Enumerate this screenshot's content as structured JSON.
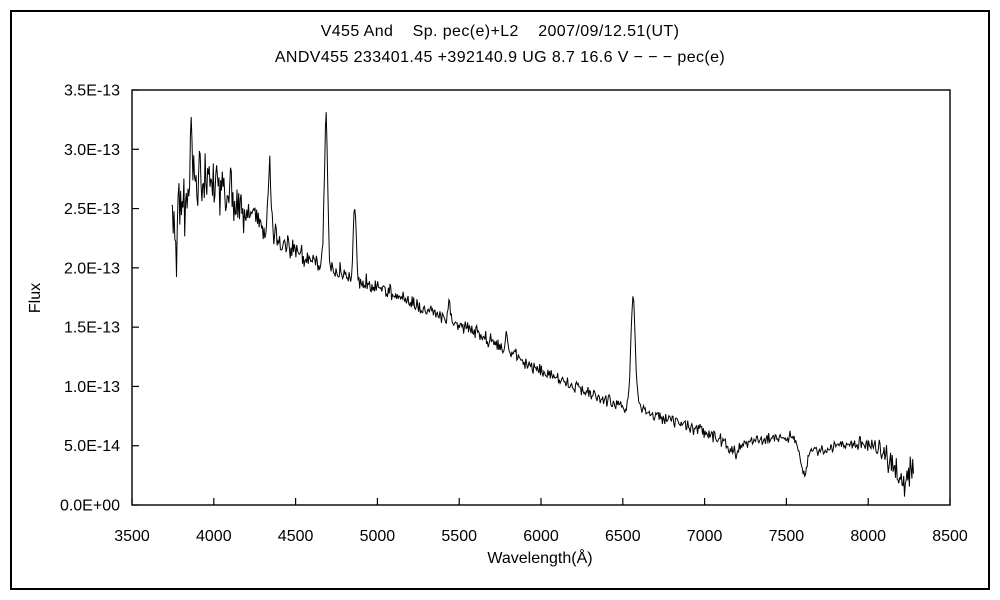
{
  "header": {
    "title_line1": "V455 And    Sp. pec(e)+L2    2007/09/12.51(UT)",
    "title_line2": "ANDV455 233401.45 +392140.9 UG 8.7 16.6 V − − − pec(e)"
  },
  "chart_data": {
    "type": "line",
    "title": "V455 And    Sp. pec(e)+L2    2007/09/12.51(UT)",
    "subtitle": "ANDV455 233401.45 +392140.9 UG 8.7 16.6 V − − − pec(e)",
    "xlabel": "Wavelength(Å)",
    "ylabel": "Flux",
    "xlim": [
      3500,
      8500
    ],
    "ylim": [
      0,
      3.5e-13
    ],
    "x_ticks": [
      3500,
      4000,
      4500,
      5000,
      5500,
      6000,
      6500,
      7000,
      7500,
      8000,
      8500
    ],
    "x_tick_labels": [
      "3500",
      "4000",
      "4500",
      "5000",
      "5500",
      "6000",
      "6500",
      "7000",
      "7500",
      "8000",
      "8500"
    ],
    "y_ticks": [
      0,
      5e-14,
      1e-13,
      1.5e-13,
      2e-13,
      2.5e-13,
      3e-13,
      3.5e-13
    ],
    "y_tick_labels": [
      "0.0E+00",
      "5.0E-14",
      "1.0E-13",
      "1.5E-13",
      "2.0E-13",
      "2.5E-13",
      "3.0E-13",
      "3.5E-13"
    ],
    "grid": false,
    "legend": null,
    "line_color": "#000000",
    "background_color": "#ffffff",
    "measured_peaks": [
      {
        "id": "blue-maximum",
        "wavelength": 3860,
        "peak_flux": 3.35e-13
      },
      {
        "id": "H-gamma",
        "wavelength": 4340,
        "peak_flux": 2.9e-13
      },
      {
        "id": "He-II",
        "wavelength": 4686,
        "peak_flux": 3.25e-13
      },
      {
        "id": "H-beta",
        "wavelength": 4861,
        "peak_flux": 2.5e-13
      },
      {
        "id": "H-alpha",
        "wavelength": 6563,
        "peak_flux": 1.74e-13
      },
      {
        "id": "telluric-O2-band-minimum",
        "wavelength": 7608,
        "peak_flux": 2e-14
      }
    ],
    "series_model": {
      "flux_scale": 1e-13,
      "sampling": {
        "start": 3742,
        "end": 8280,
        "step": 5
      },
      "seed": 20070912,
      "continuum_points": [
        [
          3742,
          2.45
        ],
        [
          3800,
          2.56
        ],
        [
          3860,
          2.7
        ],
        [
          3940,
          2.78
        ],
        [
          4000,
          2.72
        ],
        [
          4100,
          2.58
        ],
        [
          4200,
          2.45
        ],
        [
          4300,
          2.36
        ],
        [
          4400,
          2.24
        ],
        [
          4500,
          2.14
        ],
        [
          4600,
          2.06
        ],
        [
          4700,
          2.0
        ],
        [
          4800,
          1.95
        ],
        [
          4900,
          1.89
        ],
        [
          5000,
          1.84
        ],
        [
          5100,
          1.78
        ],
        [
          5200,
          1.71
        ],
        [
          5300,
          1.65
        ],
        [
          5400,
          1.58
        ],
        [
          5500,
          1.52
        ],
        [
          5600,
          1.46
        ],
        [
          5700,
          1.38
        ],
        [
          5800,
          1.3
        ],
        [
          5900,
          1.21
        ],
        [
          6000,
          1.12
        ],
        [
          6100,
          1.06
        ],
        [
          6200,
          1.0
        ],
        [
          6300,
          0.94
        ],
        [
          6400,
          0.88
        ],
        [
          6500,
          0.84
        ],
        [
          6600,
          0.8
        ],
        [
          6700,
          0.76
        ],
        [
          6800,
          0.71
        ],
        [
          6900,
          0.66
        ],
        [
          7000,
          0.61
        ],
        [
          7100,
          0.55
        ],
        [
          7200,
          0.52
        ],
        [
          7300,
          0.54
        ],
        [
          7400,
          0.55
        ],
        [
          7540,
          0.58
        ],
        [
          7620,
          0.52
        ],
        [
          7700,
          0.45
        ],
        [
          7800,
          0.49
        ],
        [
          7900,
          0.52
        ],
        [
          8000,
          0.5
        ],
        [
          8100,
          0.44
        ],
        [
          8180,
          0.38
        ],
        [
          8280,
          0.34
        ]
      ],
      "emission_lines": [
        {
          "id": "balmer-3860",
          "center": 3860,
          "amplitude": 0.6,
          "sigma": 5
        },
        {
          "id": "balmer-3912",
          "center": 3912,
          "amplitude": 0.4,
          "sigma": 5
        },
        {
          "id": "H-delta-4101",
          "center": 4101,
          "amplitude": 0.15,
          "sigma": 7
        },
        {
          "id": "H-gamma-4340",
          "center": 4340,
          "amplitude": 0.58,
          "sigma": 8
        },
        {
          "id": "He-II-4686",
          "center": 4686,
          "amplitude": 1.25,
          "sigma": 10
        },
        {
          "id": "H-beta-4861",
          "center": 4861,
          "amplitude": 0.6,
          "sigma": 9
        },
        {
          "id": "He-II-5411",
          "center": 5440,
          "amplitude": 0.12,
          "sigma": 7
        },
        {
          "id": "He-I-5876",
          "center": 5790,
          "amplitude": 0.14,
          "sigma": 7
        },
        {
          "id": "H-alpha-6563",
          "center": 6563,
          "amplitude": 0.92,
          "sigma": 14
        }
      ],
      "absorption_bands": [
        {
          "id": "blue-edge-dip",
          "center": 3772,
          "depth": 0.6,
          "sigma": 3
        },
        {
          "id": "telluric-7190",
          "center": 7185,
          "depth": 0.09,
          "sigma": 28
        },
        {
          "id": "telluric-O2-7605",
          "center": 7608,
          "depth": 0.28,
          "sigma": 20
        },
        {
          "id": "red-end-8210",
          "center": 8210,
          "depth": 0.12,
          "sigma": 45
        }
      ],
      "noise_profile": [
        [
          3742,
          0.34
        ],
        [
          3900,
          0.28
        ],
        [
          4000,
          0.22
        ],
        [
          4150,
          0.16
        ],
        [
          4300,
          0.12
        ],
        [
          4500,
          0.09
        ],
        [
          4700,
          0.07
        ],
        [
          5000,
          0.06
        ],
        [
          5500,
          0.055
        ],
        [
          6000,
          0.05
        ],
        [
          6500,
          0.05
        ],
        [
          7000,
          0.055
        ],
        [
          7400,
          0.05
        ],
        [
          7800,
          0.05
        ],
        [
          8000,
          0.07
        ],
        [
          8100,
          0.11
        ],
        [
          8200,
          0.14
        ],
        [
          8280,
          0.16
        ]
      ]
    }
  }
}
